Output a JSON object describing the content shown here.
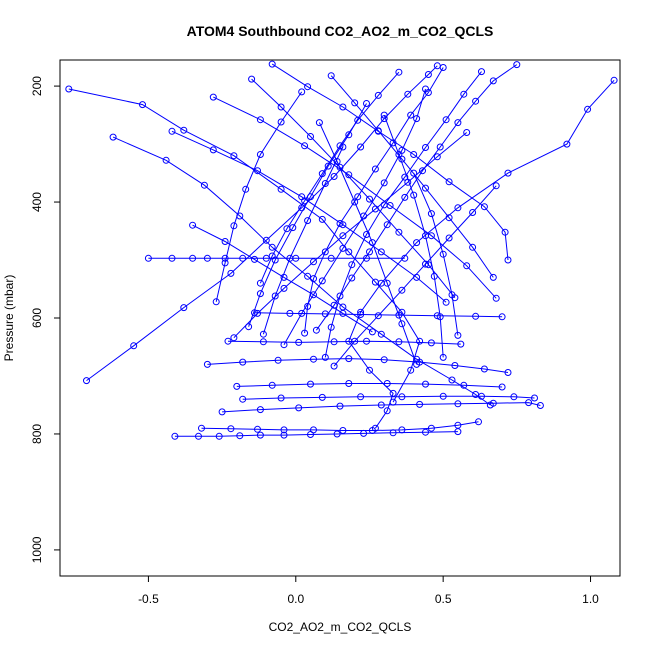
{
  "chart_data": {
    "type": "scatter",
    "title": "ATOM4 Southbound CO2_AO2_m_CO2_QCLS",
    "xlabel": "CO2_AO2_m_CO2_QCLS",
    "ylabel": "Pressure (mbar)",
    "xlim": [
      -0.8,
      1.1
    ],
    "ylim": [
      1045,
      155
    ],
    "y_reversed": true,
    "x_ticks": [
      -0.5,
      0.0,
      0.5,
      1.0
    ],
    "x_tick_labels": [
      "-0.5",
      "0.0",
      "0.5",
      "1.0"
    ],
    "y_ticks": [
      200,
      400,
      600,
      800,
      1000
    ],
    "y_tick_labels": [
      "200",
      "400",
      "600",
      "800",
      "1000"
    ],
    "grid": false,
    "legend": "none",
    "marker": "open-circle",
    "connected": true,
    "color": "#0000ff",
    "series": [
      {
        "x": [
          1.08,
          0.99,
          0.92,
          0.72,
          0.55,
          0.41,
          0.29,
          0.22,
          0.18,
          0.25,
          0.33,
          0.31,
          0.27
        ],
        "y": [
          190,
          240,
          300,
          350,
          410,
          470,
          540,
          590,
          640,
          690,
          730,
          760,
          790
        ]
      },
      {
        "x": [
          -0.77,
          -0.52,
          -0.38,
          -0.21,
          -0.05,
          0.09,
          0.18,
          0.27,
          0.36,
          0.42,
          0.39,
          0.33
        ],
        "y": [
          205,
          232,
          276,
          320,
          378,
          430,
          486,
          538,
          590,
          640,
          690,
          745
        ]
      },
      {
        "x": [
          -0.71,
          -0.55,
          -0.38,
          -0.22,
          -0.1,
          0.02,
          0.13,
          0.22,
          0.3,
          0.38,
          0.45,
          0.48
        ],
        "y": [
          708,
          648,
          582,
          523,
          466,
          410,
          356,
          305,
          256,
          214,
          180,
          165
        ]
      },
      {
        "x": [
          -0.62,
          -0.44,
          -0.31,
          -0.19,
          -0.08,
          0.04,
          0.16,
          0.29,
          0.41,
          0.53,
          0.61,
          0.66
        ],
        "y": [
          288,
          328,
          371,
          424,
          478,
          528,
          581,
          628,
          671,
          707,
          732,
          750
        ]
      },
      {
        "x": [
          -0.5,
          -0.42,
          -0.35,
          -0.3,
          -0.24,
          -0.18,
          -0.1,
          0.0,
          0.12,
          0.24,
          0.37
        ],
        "y": [
          497,
          497,
          497,
          497,
          497,
          497,
          497,
          497,
          497,
          497,
          497
        ]
      },
      {
        "x": [
          -0.41,
          -0.33,
          -0.26,
          -0.19,
          -0.12,
          -0.04,
          0.05,
          0.14,
          0.23,
          0.33,
          0.44,
          0.55
        ],
        "y": [
          804,
          804,
          804,
          803,
          802,
          802,
          801,
          800,
          799,
          798,
          797,
          796
        ]
      },
      {
        "x": [
          -0.32,
          -0.22,
          -0.13,
          -0.04,
          0.06,
          0.16,
          0.26,
          0.36,
          0.46,
          0.55,
          0.62
        ],
        "y": [
          790,
          791,
          792,
          793,
          793,
          794,
          794,
          793,
          790,
          785,
          779
        ]
      },
      {
        "x": [
          -0.25,
          -0.12,
          0.01,
          0.15,
          0.29,
          0.42,
          0.55,
          0.67,
          0.79,
          0.83
        ],
        "y": [
          762,
          758,
          755,
          752,
          750,
          749,
          748,
          747,
          746,
          751
        ]
      },
      {
        "x": [
          -0.18,
          -0.05,
          0.09,
          0.22,
          0.36,
          0.5,
          0.63,
          0.74,
          0.81
        ],
        "y": [
          740,
          738,
          737,
          736,
          736,
          735,
          735,
          736,
          738
        ]
      },
      {
        "x": [
          -0.3,
          -0.18,
          -0.06,
          0.06,
          0.18,
          0.3,
          0.42,
          0.54,
          0.64,
          0.72
        ],
        "y": [
          680,
          676,
          673,
          671,
          670,
          672,
          676,
          682,
          688,
          694
        ]
      },
      {
        "x": [
          -0.23,
          -0.11,
          0.01,
          0.13,
          0.24,
          0.35,
          0.46,
          0.56
        ],
        "y": [
          640,
          641,
          642,
          641,
          640,
          641,
          643,
          645
        ]
      },
      {
        "x": [
          -0.2,
          -0.08,
          0.05,
          0.18,
          0.31,
          0.44,
          0.57,
          0.7
        ],
        "y": [
          718,
          716,
          714,
          713,
          713,
          714,
          716,
          719
        ]
      },
      {
        "x": [
          -0.14,
          -0.02,
          0.1,
          0.22,
          0.35,
          0.48,
          0.61,
          0.7
        ],
        "y": [
          591,
          592,
          593,
          594,
          595,
          596,
          597,
          598
        ]
      },
      {
        "x": [
          0.75,
          0.67,
          0.61,
          0.55,
          0.49,
          0.43,
          0.37,
          0.31,
          0.25,
          0.19,
          0.13,
          0.07
        ],
        "y": [
          163,
          191,
          226,
          263,
          305,
          346,
          392,
          439,
          486,
          531,
          578,
          621
        ]
      },
      {
        "x": [
          0.63,
          0.57,
          0.51,
          0.44,
          0.37,
          0.3,
          0.24,
          0.19,
          0.15,
          0.12,
          0.1
        ],
        "y": [
          175,
          214,
          258,
          306,
          357,
          405,
          456,
          508,
          562,
          616,
          668
        ]
      },
      {
        "x": [
          -0.08,
          0.04,
          0.16,
          0.28,
          0.4,
          0.52,
          0.64,
          0.71,
          0.72
        ],
        "y": [
          162,
          201,
          236,
          278,
          318,
          365,
          408,
          452,
          500
        ]
      },
      {
        "x": [
          -0.28,
          -0.12,
          0.03,
          0.18,
          0.32,
          0.46,
          0.58,
          0.68
        ],
        "y": [
          219,
          258,
          303,
          353,
          406,
          458,
          510,
          566
        ]
      },
      {
        "x": [
          0.5,
          0.45,
          0.39,
          0.33,
          0.27,
          0.21,
          0.15,
          0.1,
          0.06,
          0.04,
          0.03
        ],
        "y": [
          168,
          211,
          250,
          298,
          343,
          391,
          437,
          486,
          532,
          580,
          626
        ]
      },
      {
        "x": [
          0.58,
          0.48,
          0.38,
          0.27,
          0.16,
          0.06,
          -0.04,
          -0.13,
          -0.21
        ],
        "y": [
          280,
          322,
          366,
          412,
          458,
          503,
          549,
          592,
          634
        ]
      },
      {
        "x": [
          -0.42,
          -0.28,
          -0.13,
          0.02,
          0.16,
          0.29,
          0.41,
          0.51
        ],
        "y": [
          278,
          310,
          346,
          391,
          439,
          486,
          530,
          573
        ]
      },
      {
        "x": [
          0.35,
          0.28,
          0.21,
          0.15,
          0.09,
          0.03,
          -0.03,
          -0.08,
          -0.12
        ],
        "y": [
          176,
          216,
          259,
          303,
          351,
          398,
          446,
          493,
          540
        ]
      },
      {
        "x": [
          0.44,
          0.41,
          0.36,
          0.3,
          0.23,
          0.16,
          0.09,
          0.02,
          -0.04
        ],
        "y": [
          205,
          256,
          311,
          367,
          424,
          480,
          536,
          592,
          646
        ]
      },
      {
        "x": [
          0.12,
          0.2,
          0.28,
          0.36,
          0.44,
          0.52,
          0.6,
          0.67
        ],
        "y": [
          182,
          229,
          277,
          326,
          376,
          427,
          478,
          530
        ]
      },
      {
        "x": [
          0.02,
          -0.05,
          -0.12,
          -0.17,
          -0.21,
          -0.24,
          -0.27
        ],
        "y": [
          210,
          262,
          318,
          378,
          441,
          505,
          572
        ]
      },
      {
        "x": [
          0.24,
          0.18,
          0.11,
          0.05,
          -0.01,
          -0.07,
          -0.12,
          -0.16
        ],
        "y": [
          230,
          284,
          338,
          391,
          444,
          500,
          558,
          615
        ]
      },
      {
        "x": [
          0.3,
          0.35,
          0.4,
          0.44,
          0.47,
          0.49,
          0.5
        ],
        "y": [
          250,
          318,
          388,
          458,
          528,
          598,
          668
        ]
      },
      {
        "x": [
          -0.15,
          -0.05,
          0.05,
          0.15,
          0.25,
          0.35,
          0.45,
          0.54
        ],
        "y": [
          188,
          236,
          287,
          340,
          395,
          452,
          508,
          565
        ]
      },
      {
        "x": [
          0.08,
          0.14,
          0.2,
          0.26,
          0.31,
          0.36,
          0.41
        ],
        "y": [
          263,
          330,
          400,
          470,
          540,
          610,
          680
        ]
      },
      {
        "x": [
          0.68,
          0.6,
          0.52,
          0.44,
          0.36,
          0.28,
          0.2,
          0.13
        ],
        "y": [
          372,
          418,
          462,
          507,
          552,
          596,
          640,
          683
        ]
      },
      {
        "x": [
          -0.35,
          -0.24,
          -0.14,
          -0.04,
          0.06,
          0.16,
          0.26
        ],
        "y": [
          440,
          468,
          499,
          530,
          560,
          592,
          624
        ]
      },
      {
        "x": [
          0.16,
          0.1,
          0.04,
          -0.02,
          -0.07,
          -0.11
        ],
        "y": [
          305,
          368,
          432,
          497,
          562,
          628
        ]
      },
      {
        "x": [
          0.4,
          0.46,
          0.5,
          0.53,
          0.55
        ],
        "y": [
          350,
          420,
          490,
          560,
          630
        ]
      }
    ]
  }
}
